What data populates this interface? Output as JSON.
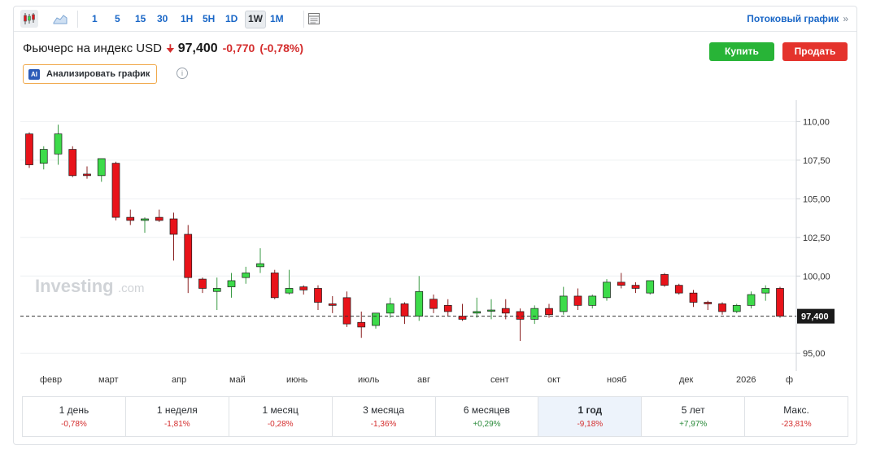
{
  "toolbar": {
    "timeframes": [
      {
        "label": "1",
        "active": false
      },
      {
        "label": "5",
        "active": false
      },
      {
        "label": "15",
        "active": false
      },
      {
        "label": "30",
        "active": false
      },
      {
        "label": "1H",
        "active": false
      },
      {
        "label": "5H",
        "active": false
      },
      {
        "label": "1D",
        "active": false
      },
      {
        "label": "1W",
        "active": true
      },
      {
        "label": "1M",
        "active": false
      }
    ],
    "stream_link": "Потоковый график",
    "stream_arrow": "»",
    "icons": [
      "candlestick-icon",
      "area-chart-icon",
      "table-icon"
    ]
  },
  "instrument": {
    "name": "Фьючерс на индекс USD",
    "price": "97,400",
    "change": "-0,770",
    "change_pct": "(-0,78%)",
    "direction_color": "#d42e2e"
  },
  "actions": {
    "buy_label": "Купить",
    "sell_label": "Продать",
    "buy_color": "#28b437",
    "sell_color": "#e4332c"
  },
  "analyze": {
    "badge": "AI",
    "label": "Анализировать график",
    "info_glyph": "i"
  },
  "chart_data": {
    "type": "candlestick",
    "y_ticks": [
      "110,00",
      "107,50",
      "105,00",
      "102,50",
      "100,00",
      "95,00"
    ],
    "y_tick_values": [
      110,
      107.5,
      105,
      102.5,
      100,
      95
    ],
    "ylim": [
      94.8,
      110.6
    ],
    "x_labels": [
      "февр",
      "март",
      "апр",
      "май",
      "июнь",
      "июль",
      "авг",
      "сент",
      "окт",
      "нояб",
      "дек",
      "2026",
      "ф"
    ],
    "last_price_label": "97,400",
    "last_price": 97.4,
    "watermark": "Investing",
    "watermark_suffix": ".com",
    "up_color": "#3ddb4a",
    "down_color": "#e8131a",
    "candles": [
      {
        "o": 109.2,
        "h": 109.3,
        "l": 107.0,
        "c": 107.2
      },
      {
        "o": 107.3,
        "h": 108.4,
        "l": 106.9,
        "c": 108.2
      },
      {
        "o": 107.9,
        "h": 109.8,
        "l": 107.2,
        "c": 109.2
      },
      {
        "o": 108.2,
        "h": 108.4,
        "l": 106.4,
        "c": 106.5
      },
      {
        "o": 106.6,
        "h": 107.1,
        "l": 106.3,
        "c": 106.5
      },
      {
        "o": 106.5,
        "h": 107.6,
        "l": 106.1,
        "c": 107.6
      },
      {
        "o": 107.3,
        "h": 107.4,
        "l": 103.6,
        "c": 103.8
      },
      {
        "o": 103.8,
        "h": 104.3,
        "l": 103.3,
        "c": 103.6
      },
      {
        "o": 103.6,
        "h": 103.8,
        "l": 102.8,
        "c": 103.7
      },
      {
        "o": 103.8,
        "h": 104.3,
        "l": 103.5,
        "c": 103.6
      },
      {
        "o": 103.7,
        "h": 104.1,
        "l": 101.0,
        "c": 102.7
      },
      {
        "o": 102.7,
        "h": 103.3,
        "l": 98.9,
        "c": 99.9
      },
      {
        "o": 99.8,
        "h": 99.9,
        "l": 98.9,
        "c": 99.2
      },
      {
        "o": 99.0,
        "h": 99.9,
        "l": 97.8,
        "c": 99.2
      },
      {
        "o": 99.3,
        "h": 100.2,
        "l": 98.6,
        "c": 99.7
      },
      {
        "o": 99.9,
        "h": 100.6,
        "l": 99.5,
        "c": 100.2
      },
      {
        "o": 100.6,
        "h": 101.8,
        "l": 100.2,
        "c": 100.8
      },
      {
        "o": 100.2,
        "h": 100.4,
        "l": 98.5,
        "c": 98.6
      },
      {
        "o": 98.9,
        "h": 100.4,
        "l": 98.8,
        "c": 99.2
      },
      {
        "o": 99.3,
        "h": 99.4,
        "l": 98.8,
        "c": 99.1
      },
      {
        "o": 99.2,
        "h": 99.4,
        "l": 97.8,
        "c": 98.3
      },
      {
        "o": 98.2,
        "h": 98.7,
        "l": 97.6,
        "c": 98.1
      },
      {
        "o": 98.6,
        "h": 99.0,
        "l": 96.7,
        "c": 96.9
      },
      {
        "o": 97.0,
        "h": 97.7,
        "l": 96.0,
        "c": 96.7
      },
      {
        "o": 96.8,
        "h": 97.6,
        "l": 96.6,
        "c": 97.6
      },
      {
        "o": 97.6,
        "h": 98.6,
        "l": 97.3,
        "c": 98.2
      },
      {
        "o": 98.2,
        "h": 98.3,
        "l": 96.9,
        "c": 97.4
      },
      {
        "o": 97.4,
        "h": 100.0,
        "l": 97.1,
        "c": 99.0
      },
      {
        "o": 98.5,
        "h": 98.8,
        "l": 97.6,
        "c": 97.9
      },
      {
        "o": 98.1,
        "h": 98.5,
        "l": 97.4,
        "c": 97.7
      },
      {
        "o": 97.4,
        "h": 98.2,
        "l": 97.1,
        "c": 97.2
      },
      {
        "o": 97.6,
        "h": 98.6,
        "l": 97.3,
        "c": 97.7
      },
      {
        "o": 97.8,
        "h": 98.5,
        "l": 97.2,
        "c": 97.8
      },
      {
        "o": 97.9,
        "h": 98.5,
        "l": 97.2,
        "c": 97.6
      },
      {
        "o": 97.7,
        "h": 97.9,
        "l": 95.8,
        "c": 97.2
      },
      {
        "o": 97.2,
        "h": 98.1,
        "l": 96.9,
        "c": 97.9
      },
      {
        "o": 97.9,
        "h": 98.2,
        "l": 97.3,
        "c": 97.5
      },
      {
        "o": 97.7,
        "h": 99.3,
        "l": 97.5,
        "c": 98.7
      },
      {
        "o": 98.7,
        "h": 99.2,
        "l": 97.8,
        "c": 98.1
      },
      {
        "o": 98.1,
        "h": 98.8,
        "l": 97.9,
        "c": 98.7
      },
      {
        "o": 98.6,
        "h": 99.8,
        "l": 98.4,
        "c": 99.6
      },
      {
        "o": 99.6,
        "h": 100.2,
        "l": 99.2,
        "c": 99.4
      },
      {
        "o": 99.4,
        "h": 99.6,
        "l": 98.9,
        "c": 99.2
      },
      {
        "o": 98.9,
        "h": 99.7,
        "l": 98.8,
        "c": 99.7
      },
      {
        "o": 100.1,
        "h": 100.2,
        "l": 99.3,
        "c": 99.4
      },
      {
        "o": 99.4,
        "h": 99.5,
        "l": 98.8,
        "c": 98.9
      },
      {
        "o": 98.9,
        "h": 99.1,
        "l": 98.0,
        "c": 98.3
      },
      {
        "o": 98.3,
        "h": 98.4,
        "l": 97.8,
        "c": 98.2
      },
      {
        "o": 98.2,
        "h": 98.3,
        "l": 97.5,
        "c": 97.7
      },
      {
        "o": 97.7,
        "h": 98.2,
        "l": 97.6,
        "c": 98.1
      },
      {
        "o": 98.1,
        "h": 99.0,
        "l": 97.9,
        "c": 98.8
      },
      {
        "o": 98.9,
        "h": 99.4,
        "l": 98.4,
        "c": 99.2
      },
      {
        "o": 99.2,
        "h": 99.3,
        "l": 97.3,
        "c": 97.4
      }
    ]
  },
  "performance": [
    {
      "label": "1 день",
      "value": "-0,78%",
      "sign": "neg",
      "active": false
    },
    {
      "label": "1 неделя",
      "value": "-1,81%",
      "sign": "neg",
      "active": false
    },
    {
      "label": "1 месяц",
      "value": "-0,28%",
      "sign": "neg",
      "active": false
    },
    {
      "label": "3 месяца",
      "value": "-1,36%",
      "sign": "neg",
      "active": false
    },
    {
      "label": "6 месяцев",
      "value": "+0,29%",
      "sign": "pos",
      "active": false
    },
    {
      "label": "1 год",
      "value": "-9,18%",
      "sign": "neg",
      "active": true
    },
    {
      "label": "5 лет",
      "value": "+7,97%",
      "sign": "pos",
      "active": false
    },
    {
      "label": "Макс.",
      "value": "-23,81%",
      "sign": "neg",
      "active": false
    }
  ]
}
